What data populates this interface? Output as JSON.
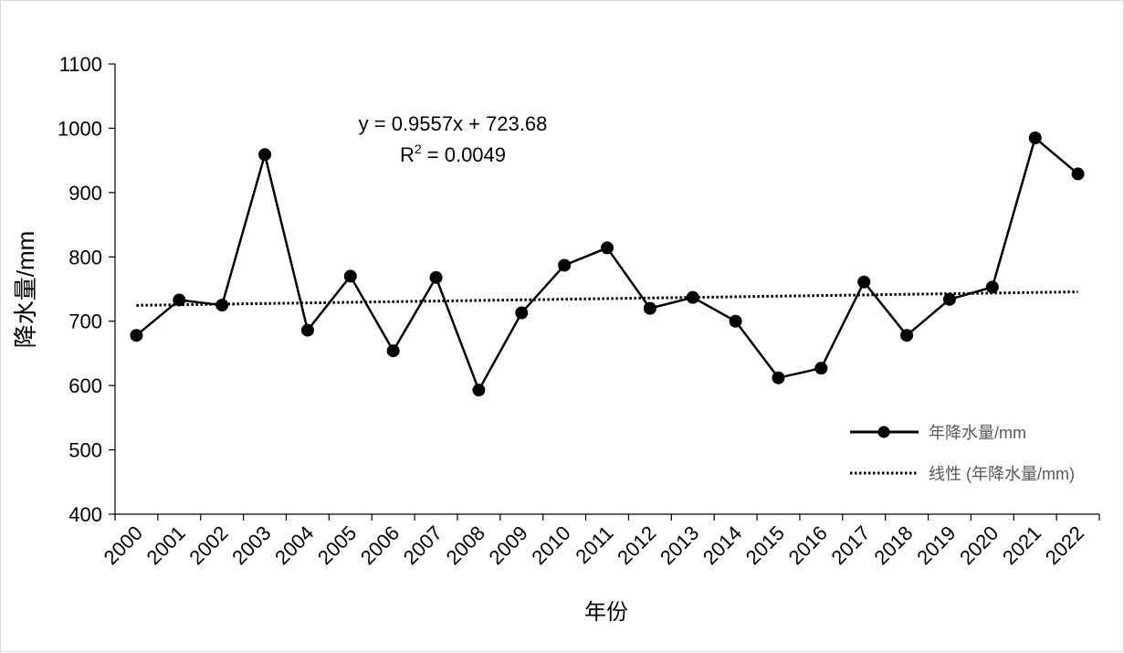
{
  "chart_data": {
    "type": "line",
    "xlabel": "年份",
    "ylabel": "降水量/mm",
    "ylim": [
      400,
      1100
    ],
    "yticks": [
      400,
      500,
      600,
      700,
      800,
      900,
      1000,
      1100
    ],
    "grid": false,
    "legend_position": "right",
    "categories": [
      "2000",
      "2001",
      "2002",
      "2003",
      "2004",
      "2005",
      "2006",
      "2007",
      "2008",
      "2009",
      "2010",
      "2011",
      "2012",
      "2013",
      "2014",
      "2015",
      "2016",
      "2017",
      "2018",
      "2019",
      "2020",
      "2021",
      "2022"
    ],
    "series": [
      {
        "name": "年降水量/mm",
        "color": "#000000",
        "marker": "circle",
        "values": [
          678,
          733,
          725,
          959,
          686,
          770,
          654,
          768,
          593,
          713,
          787,
          814,
          720,
          737,
          700,
          612,
          627,
          761,
          678,
          734,
          753,
          985,
          929
        ]
      }
    ],
    "trendline": {
      "name": "线性 (年降水量/mm)",
      "style": "dotted",
      "slope": 0.9557,
      "intercept": 723.68,
      "equation": "y = 0.9557x + 723.68",
      "r2_label": "R",
      "r2_exp": "2",
      "r2_value": " = 0.0049"
    }
  }
}
